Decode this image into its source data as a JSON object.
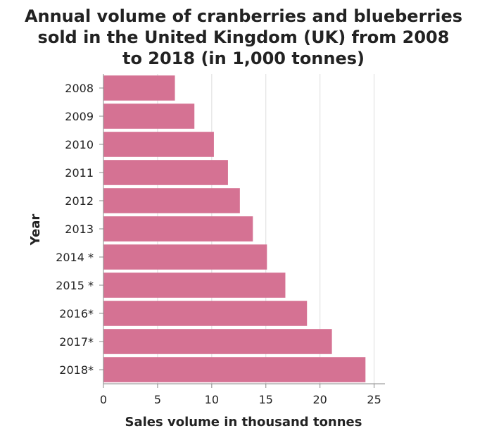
{
  "chart_data": {
    "type": "bar",
    "orientation": "horizontal",
    "title_lines": [
      "Annual volume of cranberries and blueberries",
      "sold in the United Kingdom (UK) from 2008",
      "to 2018 (in 1,000 tonnes)"
    ],
    "xlabel": "Sales volume in thousand tonnes",
    "ylabel": "Year",
    "categories": [
      "2008",
      "2009",
      "2010",
      "2011",
      "2012",
      "2013",
      "2014 *",
      "2015 *",
      "2016*",
      "2017*",
      "2018*"
    ],
    "values": [
      6.6,
      8.4,
      10.2,
      11.5,
      12.6,
      13.8,
      15.1,
      16.8,
      18.8,
      21.1,
      24.2
    ],
    "xlim": [
      0,
      26
    ],
    "xticks": [
      0,
      5,
      10,
      15,
      20,
      25
    ],
    "grid": "vertical",
    "bar_color": "#d57293",
    "grid_color": "#dddddd",
    "axis_color": "#888888"
  }
}
